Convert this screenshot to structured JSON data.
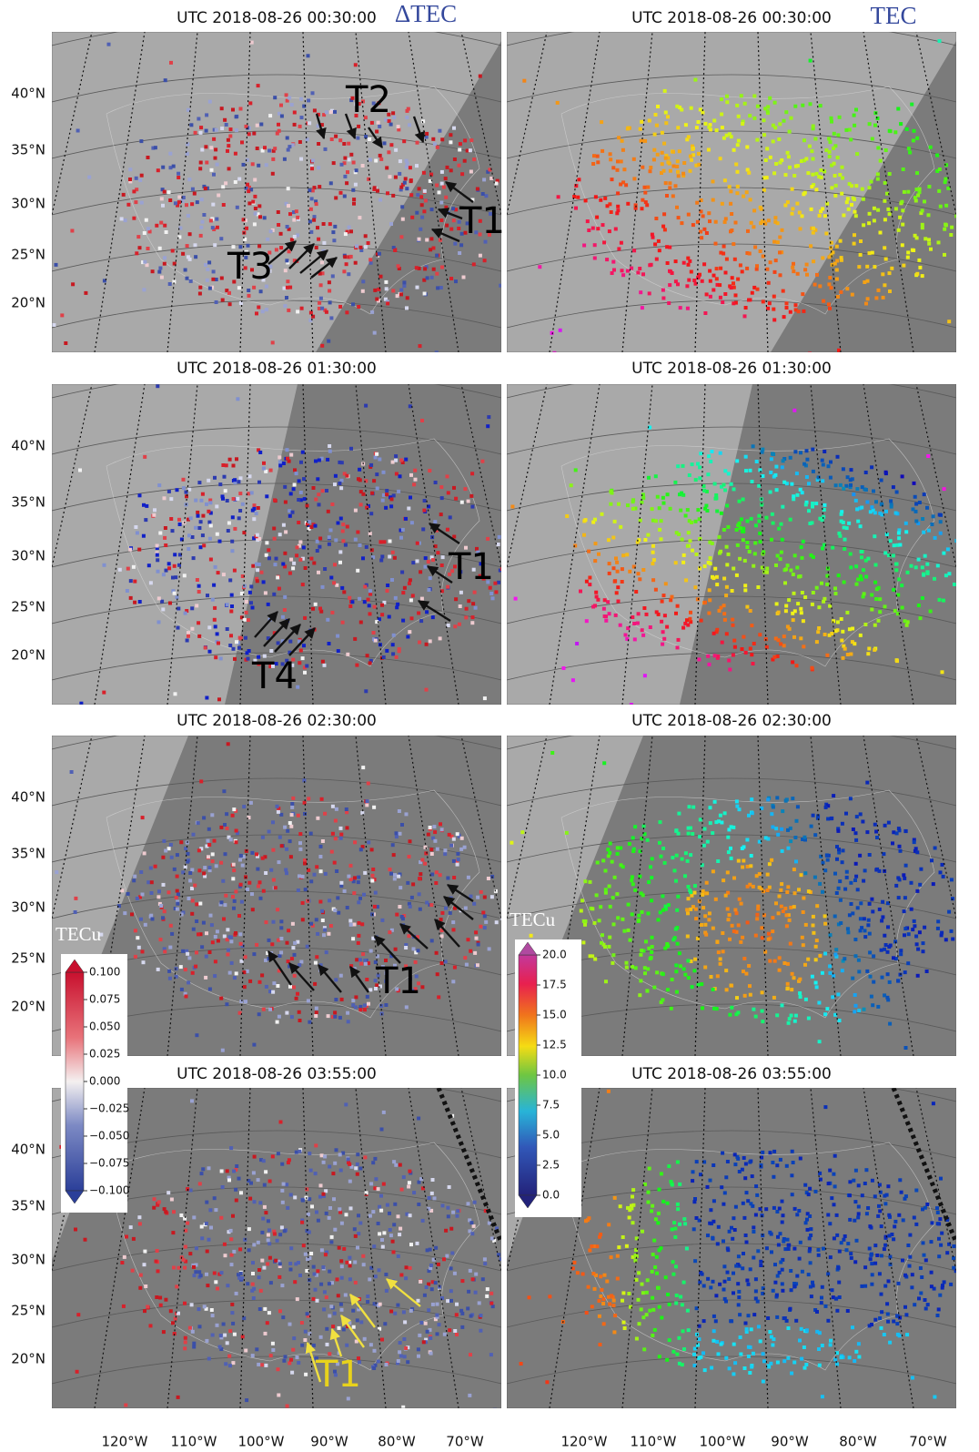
{
  "headers": {
    "left": "ΔTEC",
    "right": "TEC"
  },
  "panels": [
    {
      "title": "UTC 2018-08-26 00:30:00",
      "annotations": [
        "T2",
        "T1",
        "T3"
      ]
    },
    {
      "title": "UTC 2018-08-26 00:30:00",
      "annotations": []
    },
    {
      "title": "UTC 2018-08-26 01:30:00",
      "annotations": [
        "T1",
        "T4"
      ]
    },
    {
      "title": "UTC 2018-08-26 01:30:00",
      "annotations": []
    },
    {
      "title": "UTC 2018-08-26 02:30:00",
      "annotations": [
        "T1"
      ]
    },
    {
      "title": "UTC 2018-08-26 02:30:00",
      "annotations": []
    },
    {
      "title": "UTC 2018-08-26 03:55:00",
      "annotations": [
        "T1"
      ]
    },
    {
      "title": "UTC 2018-08-26 03:55:00",
      "annotations": []
    }
  ],
  "latitude_labels": [
    "40°N",
    "35°N",
    "30°N",
    "25°N",
    "20°N"
  ],
  "longitude_labels": [
    "120°W",
    "110°W",
    "100°W",
    "90°W",
    "80°W",
    "70°W"
  ],
  "colorbars": [
    {
      "unit": "TECu",
      "ticks": [
        "0.100",
        "0.075",
        "0.050",
        "0.025",
        "0.000",
        "−0.025",
        "−0.050",
        "−0.075",
        "−0.100"
      ]
    },
    {
      "unit": "TECu",
      "ticks": [
        "20.0",
        "17.5",
        "15.0",
        "12.5",
        "10.0",
        "7.5",
        "5.0",
        "2.5",
        "0.0"
      ]
    }
  ]
}
